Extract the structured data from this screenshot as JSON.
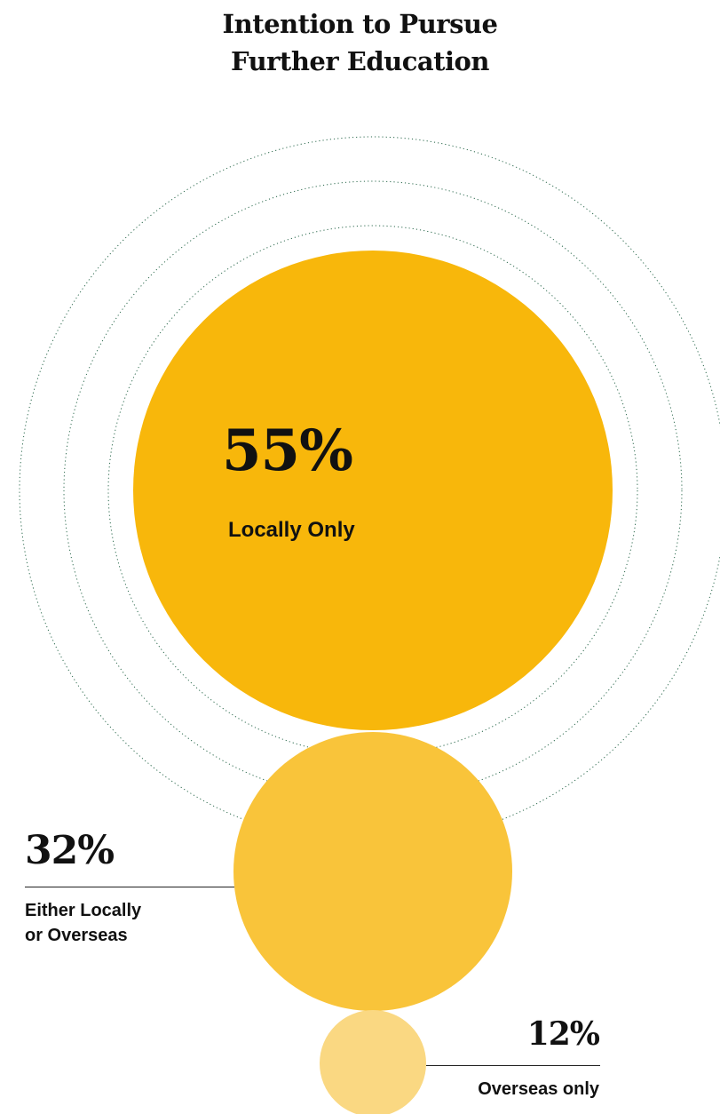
{
  "chart_data": {
    "type": "bubble",
    "title": [
      "Intention to Pursue",
      "Further Education"
    ],
    "series": [
      {
        "label": "Locally Only",
        "value": 55,
        "display": "55%",
        "color": "#F8B70B"
      },
      {
        "label": "Either Locally or Overseas",
        "label_lines": [
          "Either Locally",
          "or Overseas"
        ],
        "value": 32,
        "display": "32%",
        "color": "#F9C43A"
      },
      {
        "label": "Overseas only",
        "value": 12,
        "display": "12%",
        "color": "#FAD882"
      }
    ],
    "ring_color": "#2E6B4F"
  }
}
